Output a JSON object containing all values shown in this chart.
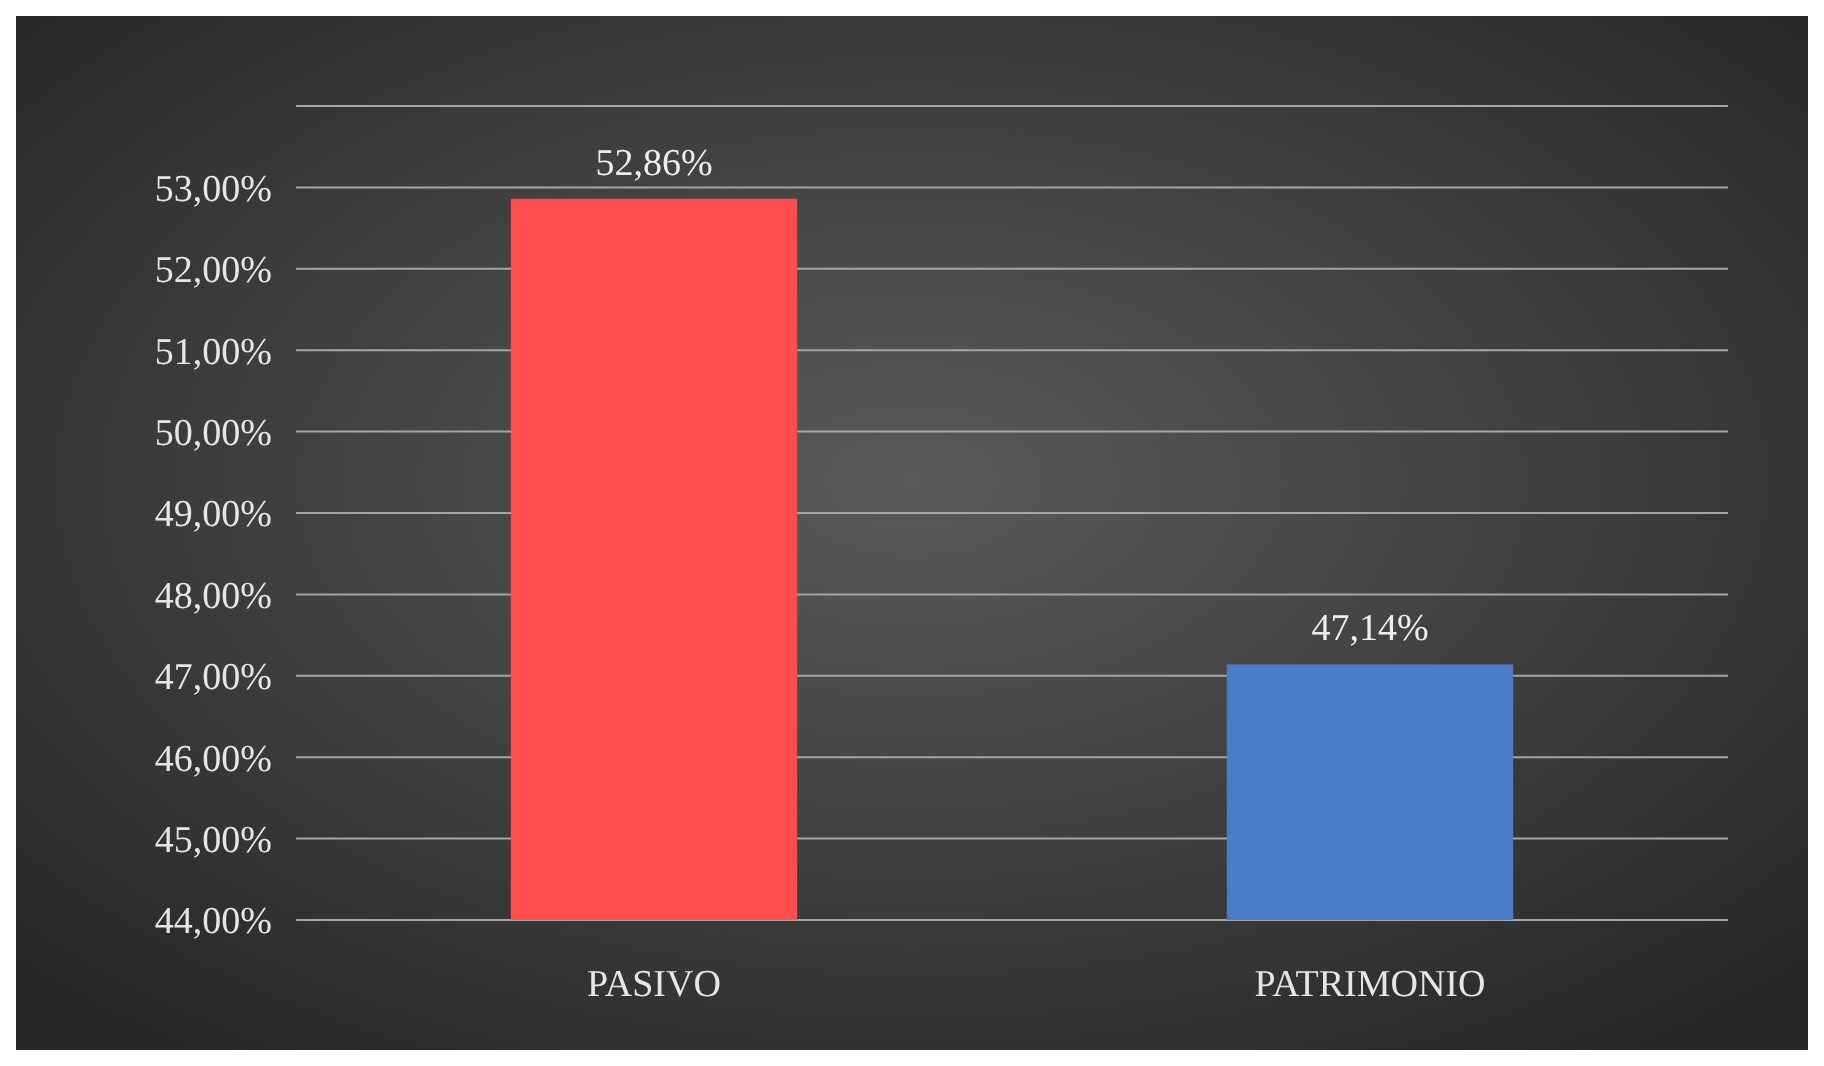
{
  "chart_data": {
    "type": "bar",
    "categories": [
      "PASIVO",
      "PATRIMONIO"
    ],
    "values": [
      52.86,
      47.14
    ],
    "colors": [
      "#ff4d4d",
      "#4a7cc8"
    ],
    "value_labels": [
      "52,86%",
      "47,14%"
    ],
    "ylim": [
      44,
      54
    ],
    "yticks": [
      {
        "value": 44,
        "label": "44,00%"
      },
      {
        "value": 45,
        "label": "45,00%"
      },
      {
        "value": 46,
        "label": "46,00%"
      },
      {
        "value": 47,
        "label": "47,00%"
      },
      {
        "value": 48,
        "label": "48,00%"
      },
      {
        "value": 49,
        "label": "49,00%"
      },
      {
        "value": 50,
        "label": "50,00%"
      },
      {
        "value": 51,
        "label": "51,00%"
      },
      {
        "value": 52,
        "label": "52,00%"
      },
      {
        "value": 53,
        "label": "53,00%"
      },
      {
        "value": 54,
        "label": null
      }
    ],
    "grid": true
  }
}
